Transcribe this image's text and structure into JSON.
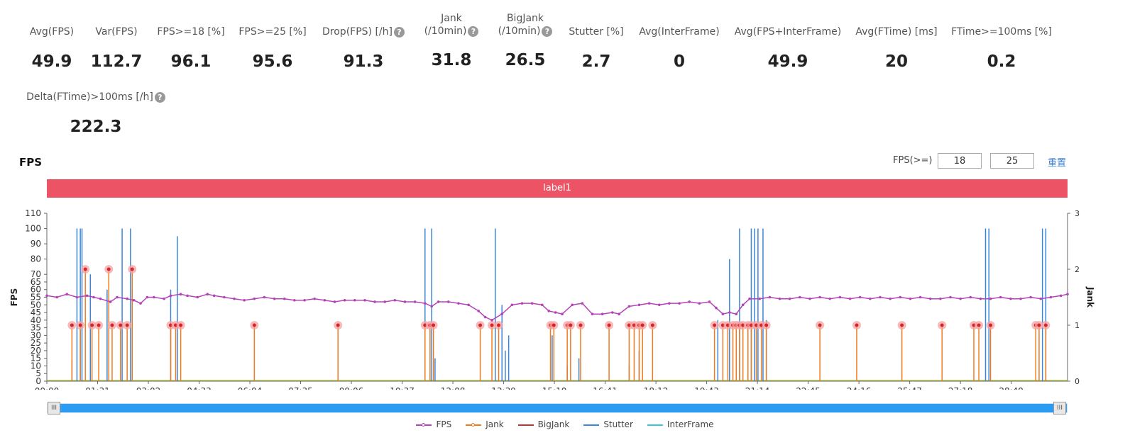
{
  "stats": [
    {
      "label": "Avg(FPS)",
      "value": "49.9"
    },
    {
      "label": "Var(FPS)",
      "value": "112.7"
    },
    {
      "label": "FPS>=18 [%]",
      "value": "96.1"
    },
    {
      "label": "FPS>=25 [%]",
      "value": "95.6"
    },
    {
      "label": "Drop(FPS) [/h]",
      "value": "91.3",
      "help": "?"
    },
    {
      "label": "Jank",
      "label2": "(/10min)",
      "value": "31.8",
      "help": "?"
    },
    {
      "label": "BigJank",
      "label2": "(/10min)",
      "value": "26.5",
      "help": "?"
    },
    {
      "label": "Stutter [%]",
      "value": "2.7"
    },
    {
      "label": "Avg(InterFrame)",
      "value": "0"
    },
    {
      "label": "Avg(FPS+InterFrame)",
      "value": "49.9"
    },
    {
      "label": "Avg(FTime) [ms]",
      "value": "20"
    },
    {
      "label": "FTime>=100ms [%]",
      "value": "0.2"
    },
    {
      "label": "Delta(FTime)>100ms [/h]",
      "value": "222.3",
      "help": "?"
    }
  ],
  "chart_title": "FPS",
  "fps_threshold": {
    "label": "FPS(>=)",
    "value1": "18",
    "value2": "25"
  },
  "reset_label": "重置",
  "band_label": "label1",
  "scroll": {
    "left_grip": "III",
    "right_grip": "III"
  },
  "colors": {
    "fps": "#b543b8",
    "jank": "#ef7b1f",
    "bigjank": "#c0342b",
    "stutter": "#3d85d6",
    "interframe": "#3dc6d8",
    "band": "#ec5466",
    "scroll": "#2c9cf2"
  },
  "chart_data": {
    "type": "line",
    "xlabel": "",
    "ylabel": "FPS",
    "ylabel_right": "Jank",
    "ylim": [
      0,
      110
    ],
    "y_ticks": [
      0,
      5,
      10,
      15,
      20,
      25,
      30,
      35,
      40,
      45,
      50,
      55,
      60,
      65,
      70,
      80,
      90,
      100,
      110
    ],
    "ylim_right": [
      0,
      3
    ],
    "y_right_ticks": [
      0,
      1,
      2,
      3
    ],
    "x_ticks": [
      "00:00",
      "01:31",
      "03:02",
      "04:33",
      "06:04",
      "07:35",
      "09:06",
      "10:37",
      "12:08",
      "13:39",
      "15:10",
      "16:41",
      "18:12",
      "19:43",
      "21:14",
      "22:45",
      "24:16",
      "25:47",
      "27:18",
      "28:49"
    ],
    "x_range_minutes": [
      0,
      30.5
    ],
    "grid": false,
    "legend": "bottom",
    "series": [
      {
        "name": "FPS",
        "points": [
          [
            0,
            56
          ],
          [
            0.3,
            55
          ],
          [
            0.6,
            57
          ],
          [
            0.9,
            55
          ],
          [
            1.2,
            56
          ],
          [
            1.4,
            55
          ],
          [
            1.6,
            54
          ],
          [
            1.9,
            52
          ],
          [
            2.1,
            55
          ],
          [
            2.4,
            54
          ],
          [
            2.6,
            53
          ],
          [
            2.8,
            51
          ],
          [
            3.0,
            55
          ],
          [
            3.2,
            55
          ],
          [
            3.5,
            54
          ],
          [
            3.7,
            56
          ],
          [
            4.0,
            57
          ],
          [
            4.2,
            56
          ],
          [
            4.5,
            55
          ],
          [
            4.8,
            57
          ],
          [
            5.0,
            56
          ],
          [
            5.3,
            55
          ],
          [
            5.6,
            54
          ],
          [
            5.9,
            53
          ],
          [
            6.2,
            54
          ],
          [
            6.5,
            55
          ],
          [
            6.8,
            54
          ],
          [
            7.1,
            54
          ],
          [
            7.4,
            53
          ],
          [
            7.7,
            53
          ],
          [
            8.0,
            54
          ],
          [
            8.3,
            53
          ],
          [
            8.6,
            52
          ],
          [
            8.9,
            53
          ],
          [
            9.2,
            53
          ],
          [
            9.5,
            53
          ],
          [
            9.8,
            52
          ],
          [
            10.1,
            52
          ],
          [
            10.4,
            53
          ],
          [
            10.7,
            52
          ],
          [
            11.0,
            52
          ],
          [
            11.3,
            51
          ],
          [
            11.5,
            49
          ],
          [
            11.7,
            52
          ],
          [
            12.0,
            52
          ],
          [
            12.3,
            51
          ],
          [
            12.6,
            50
          ],
          [
            12.9,
            46
          ],
          [
            13.1,
            42
          ],
          [
            13.3,
            40
          ],
          [
            13.6,
            44
          ],
          [
            13.9,
            50
          ],
          [
            14.2,
            51
          ],
          [
            14.5,
            51
          ],
          [
            14.8,
            50
          ],
          [
            15.0,
            46
          ],
          [
            15.2,
            45
          ],
          [
            15.4,
            44
          ],
          [
            15.7,
            50
          ],
          [
            16.0,
            51
          ],
          [
            16.3,
            44
          ],
          [
            16.6,
            44
          ],
          [
            16.9,
            45
          ],
          [
            17.1,
            44
          ],
          [
            17.4,
            49
          ],
          [
            17.7,
            50
          ],
          [
            18.0,
            51
          ],
          [
            18.3,
            50
          ],
          [
            18.6,
            51
          ],
          [
            18.9,
            51
          ],
          [
            19.2,
            52
          ],
          [
            19.5,
            51
          ],
          [
            19.8,
            52
          ],
          [
            20.0,
            48
          ],
          [
            20.2,
            44
          ],
          [
            20.4,
            45
          ],
          [
            20.6,
            44
          ],
          [
            20.8,
            50
          ],
          [
            21.0,
            54
          ],
          [
            21.3,
            54
          ],
          [
            21.6,
            55
          ],
          [
            21.9,
            54
          ],
          [
            22.2,
            54
          ],
          [
            22.5,
            55
          ],
          [
            22.8,
            54
          ],
          [
            23.1,
            55
          ],
          [
            23.4,
            54
          ],
          [
            23.7,
            55
          ],
          [
            24.0,
            54
          ],
          [
            24.3,
            55
          ],
          [
            24.6,
            54
          ],
          [
            24.9,
            55
          ],
          [
            25.2,
            54
          ],
          [
            25.5,
            55
          ],
          [
            25.8,
            54
          ],
          [
            26.1,
            55
          ],
          [
            26.4,
            54
          ],
          [
            26.7,
            54
          ],
          [
            27.0,
            55
          ],
          [
            27.3,
            54
          ],
          [
            27.6,
            55
          ],
          [
            27.9,
            54
          ],
          [
            28.2,
            54
          ],
          [
            28.5,
            55
          ],
          [
            28.8,
            54
          ],
          [
            29.1,
            54
          ],
          [
            29.4,
            55
          ],
          [
            29.7,
            54
          ],
          [
            30.0,
            55
          ],
          [
            30.3,
            56
          ],
          [
            30.5,
            57
          ]
        ]
      },
      {
        "name": "Jank",
        "x": [
          0.75,
          1.0,
          1.15,
          1.35,
          1.55,
          1.85,
          1.95,
          2.2,
          2.4,
          2.55,
          3.7,
          3.85,
          4.0,
          6.2,
          8.7,
          11.3,
          11.45,
          11.55,
          12.95,
          13.3,
          13.5,
          15.05,
          15.15,
          15.55,
          15.65,
          15.95,
          16.8,
          17.4,
          17.55,
          17.7,
          17.8,
          18.1,
          19.95,
          20.2,
          20.35,
          20.5,
          20.6,
          20.7,
          20.8,
          20.95,
          21.05,
          21.2,
          21.35,
          21.5,
          23.1,
          24.2,
          25.55,
          26.75,
          27.7,
          27.85,
          28.2,
          29.55,
          29.65,
          29.85
        ],
        "values": [
          1,
          1,
          2,
          1,
          1,
          2,
          1,
          1,
          1,
          2,
          1,
          1,
          1,
          1,
          1,
          1,
          1,
          1,
          1,
          1,
          1,
          1,
          1,
          1,
          1,
          1,
          1,
          1,
          1,
          1,
          1,
          1,
          1,
          1,
          1,
          1,
          1,
          1,
          1,
          1,
          1,
          1,
          1,
          1,
          1,
          1,
          1,
          1,
          1,
          1,
          1,
          1,
          1,
          1
        ]
      },
      {
        "name": "BigJank",
        "x": [],
        "values": []
      },
      {
        "name": "Stutter",
        "x": [
          0.75,
          0.9,
          1.0,
          1.05,
          1.3,
          1.8,
          2.25,
          2.5,
          2.55,
          3.7,
          3.9,
          11.3,
          11.5,
          11.6,
          13.4,
          13.6,
          13.7,
          13.8,
          15.1,
          15.55,
          15.9,
          17.4,
          17.7,
          20.05,
          20.4,
          20.7,
          21.05,
          21.15,
          21.25,
          21.4,
          21.5,
          28.05,
          28.15,
          29.75,
          29.85
        ],
        "values": [
          14,
          100,
          100,
          100,
          70,
          60,
          100,
          100,
          60,
          60,
          95,
          100,
          100,
          15,
          100,
          50,
          20,
          30,
          30,
          10,
          15,
          10,
          20,
          40,
          80,
          100,
          100,
          100,
          100,
          100,
          40,
          100,
          100,
          100,
          100
        ]
      },
      {
        "name": "InterFrame",
        "x": [],
        "values": []
      }
    ]
  }
}
